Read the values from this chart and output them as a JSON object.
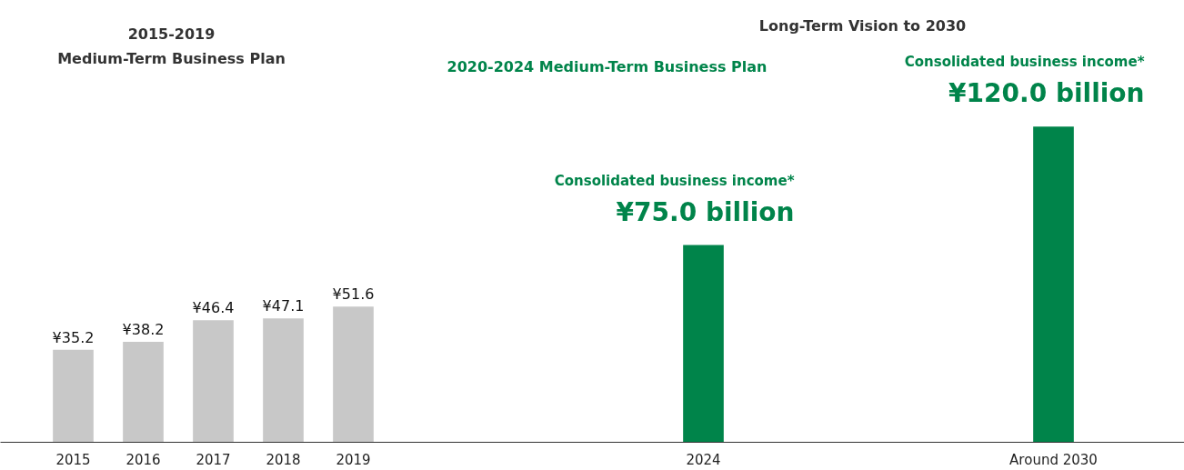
{
  "chart_data": {
    "type": "bar",
    "categories": [
      "2015",
      "2016",
      "2017",
      "2018",
      "2019",
      null,
      null,
      null,
      null,
      "2024",
      null,
      null,
      null,
      null,
      "Around 2030"
    ],
    "values": [
      35.2,
      38.2,
      46.4,
      47.1,
      51.6,
      null,
      null,
      null,
      null,
      75.0,
      null,
      null,
      null,
      null,
      120.0
    ],
    "colors": [
      "#c8c8c8",
      "#c8c8c8",
      "#c8c8c8",
      "#c8c8c8",
      "#c8c8c8",
      null,
      null,
      null,
      null,
      "#00844a",
      null,
      null,
      null,
      null,
      "#00844a"
    ],
    "value_labels": [
      "¥35.2",
      "¥38.2",
      "¥46.4",
      "¥47.1",
      "¥51.6",
      null,
      null,
      null,
      null,
      "¥75.0 billion",
      null,
      null,
      null,
      null,
      "¥120.0 billion"
    ],
    "tick_labels": "x",
    "grid": false,
    "annotations": [
      "2015-2019\nMedium-Term Business Plan",
      "Long-Term Vision to 2030",
      "2020-2024 Medium-Term Business Plan",
      "Consolidated business income*",
      "Consolidated business income*"
    ]
  }
}
